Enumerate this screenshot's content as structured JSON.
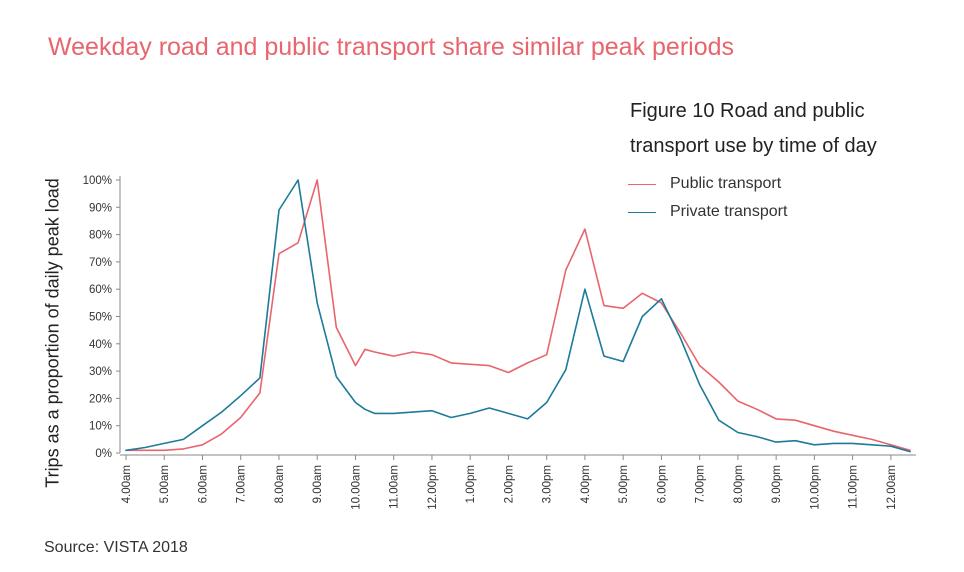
{
  "headline": "Weekday road and public transport share similar peak periods",
  "source": "Source: VISTA 2018",
  "colors": {
    "public": "#e8656e",
    "private": "#1d7a9a",
    "axis": "#8a8a8a"
  },
  "chart_data": {
    "type": "line",
    "title": "Figure 10 Road and public transport use by time of day",
    "xlabel": "",
    "ylabel": "Trips as a proportion of daily peak load",
    "ylim": [
      0,
      100
    ],
    "yticks": [
      0,
      10,
      20,
      30,
      40,
      50,
      60,
      70,
      80,
      90,
      100
    ],
    "ytick_labels": [
      "0%",
      "10%",
      "20%",
      "30%",
      "40%",
      "50%",
      "60%",
      "70%",
      "80%",
      "90%",
      "100%"
    ],
    "xtick_labels": [
      "4.00am",
      "5.00am",
      "6.00am",
      "7.00am",
      "8.00am",
      "9.00am",
      "10.00am",
      "11.00am",
      "12.00pm",
      "1.00pm",
      "2.00pm",
      "3.00pm",
      "4.00pm",
      "5.00pm",
      "6.00pm",
      "7.00pm",
      "8.00pm",
      "9.00pm",
      "10.00pm",
      "11.00pm",
      "12.00am"
    ],
    "x_range_hours": [
      4,
      24.5
    ],
    "legend_position": "top-right",
    "series": [
      {
        "name": "Public transport",
        "color": "#e8656e",
        "x": [
          4,
          4.5,
          5,
          5.5,
          6,
          6.5,
          7,
          7.5,
          8,
          8.5,
          9,
          9.5,
          10,
          10.25,
          10.5,
          11,
          11.5,
          12,
          12.5,
          13,
          13.5,
          14,
          14.5,
          15,
          15.5,
          16,
          16.5,
          17,
          17.5,
          18,
          18.5,
          19,
          19.5,
          20,
          20.5,
          21,
          21.5,
          22,
          22.5,
          23,
          23.5,
          24,
          24.5
        ],
        "values": [
          1,
          1,
          1,
          1.5,
          3,
          7,
          13,
          22,
          73,
          77,
          100,
          46,
          32,
          38,
          37,
          35.5,
          37,
          36,
          33,
          32.5,
          32,
          29.5,
          33,
          36,
          67,
          82,
          54,
          53,
          58.5,
          55,
          44,
          32,
          26,
          19,
          16,
          12.5,
          12,
          10,
          8,
          6.5,
          5,
          3,
          1
        ]
      },
      {
        "name": "Private transport",
        "color": "#1d7a9a",
        "x": [
          4,
          4.5,
          5,
          5.5,
          6,
          6.5,
          7,
          7.5,
          8,
          8.5,
          9,
          9.5,
          10,
          10.25,
          10.5,
          11,
          11.5,
          12,
          12.5,
          13,
          13.5,
          14,
          14.5,
          15,
          15.5,
          16,
          16.5,
          17,
          17.5,
          18,
          18.5,
          19,
          19.5,
          20,
          20.5,
          21,
          21.5,
          22,
          22.5,
          23,
          23.5,
          24,
          24.5
        ],
        "values": [
          1,
          2,
          3.5,
          5,
          10,
          15,
          21,
          27.5,
          89,
          100,
          55,
          28,
          18.5,
          16,
          14.5,
          14.5,
          15,
          15.5,
          13,
          14.5,
          16.5,
          14.5,
          12.5,
          18.5,
          30.5,
          60,
          35.5,
          33.5,
          50,
          56.5,
          42,
          25,
          12,
          7.5,
          6,
          4,
          4.5,
          3,
          3.5,
          3.5,
          3,
          2.5,
          0.5
        ]
      }
    ]
  }
}
